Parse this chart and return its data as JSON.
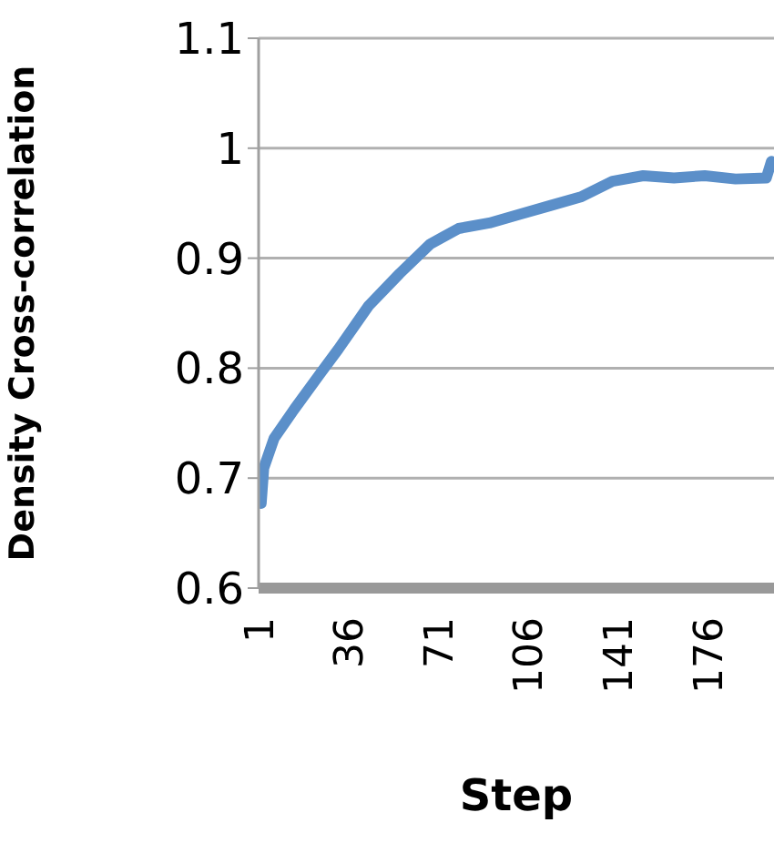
{
  "chart_data": {
    "type": "line",
    "xlabel": "Step",
    "ylabel": "Density Cross-correlation",
    "x": [
      1,
      2,
      6,
      14,
      24,
      31,
      43,
      55,
      67,
      78,
      90,
      102,
      114,
      126,
      138,
      150,
      162,
      174,
      186,
      198,
      200
    ],
    "series": [
      {
        "color": "#5b8fc9",
        "values": [
          0.677,
          0.709,
          0.736,
          0.763,
          0.795,
          0.817,
          0.857,
          0.886,
          0.913,
          0.927,
          0.932,
          0.94,
          0.948,
          0.956,
          0.97,
          0.975,
          0.973,
          0.975,
          0.972,
          0.973,
          0.988
        ]
      }
    ],
    "xlim": [
      0,
      201
    ],
    "xticks": [
      1,
      36,
      71,
      106,
      141,
      176
    ],
    "ylim": [
      0.6,
      1.1
    ],
    "yticks": [
      0.6,
      0.7,
      0.8,
      0.9,
      1,
      1.1
    ],
    "grid": "y",
    "marker": "none",
    "line_style": "solid",
    "legend": false
  }
}
